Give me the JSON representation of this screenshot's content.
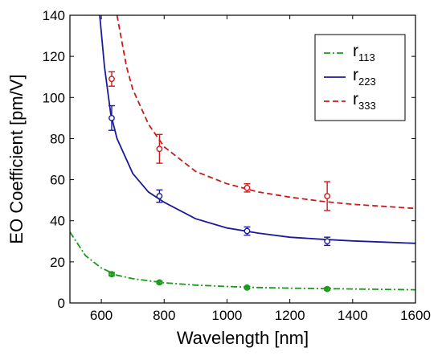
{
  "chart_data": {
    "type": "line",
    "xlabel": "Wavelength [nm]",
    "ylabel": "EO Coefficient [pm/V]",
    "xlim": [
      500,
      1600
    ],
    "ylim": [
      0,
      140
    ],
    "xticks": [
      600,
      800,
      1000,
      1200,
      1400,
      1600
    ],
    "yticks": [
      0,
      20,
      40,
      60,
      80,
      100,
      120,
      140
    ],
    "legend_position": "top-right",
    "series": [
      {
        "name": "r113",
        "name_base": "r",
        "name_sub": "113",
        "color": "#1a9a1a",
        "line_style": "dash-dot",
        "fit_curve": {
          "x": [
            500,
            550,
            600,
            650,
            700,
            800,
            900,
            1000,
            1100,
            1200,
            1300,
            1400,
            1500,
            1600
          ],
          "y": [
            34.5,
            23.0,
            17.0,
            13.5,
            11.8,
            9.8,
            8.7,
            8.0,
            7.5,
            7.2,
            7.0,
            6.8,
            6.6,
            6.4
          ]
        },
        "points": [
          {
            "x": 633,
            "y": 14,
            "err": 0.8
          },
          {
            "x": 785,
            "y": 10,
            "err": 0.6
          },
          {
            "x": 1064,
            "y": 7.5,
            "err": 0.6
          },
          {
            "x": 1319,
            "y": 6.8,
            "err": 0.6
          }
        ]
      },
      {
        "name": "r223",
        "name_base": "r",
        "name_sub": "223",
        "color": "#1a1a9a",
        "line_style": "solid",
        "fit_curve": {
          "x": [
            595,
            610,
            630,
            650,
            700,
            750,
            800,
            900,
            1000,
            1100,
            1200,
            1300,
            1400,
            1500,
            1600
          ],
          "y": [
            140,
            115,
            92,
            80,
            63,
            54,
            49,
            41,
            36.5,
            34,
            32,
            31,
            30.2,
            29.6,
            29
          ]
        },
        "points": [
          {
            "x": 633,
            "y": 90,
            "err": 6
          },
          {
            "x": 785,
            "y": 52,
            "err": 3
          },
          {
            "x": 1064,
            "y": 35,
            "err": 2
          },
          {
            "x": 1319,
            "y": 30,
            "err": 2
          }
        ]
      },
      {
        "name": "r333",
        "name_base": "r",
        "name_sub": "333",
        "color": "#cc1a1a",
        "line_style": "dashed",
        "fit_curve": {
          "x": [
            650,
            680,
            700,
            750,
            800,
            900,
            1000,
            1100,
            1200,
            1300,
            1400,
            1500,
            1600
          ],
          "y": [
            140,
            115,
            104,
            87,
            76,
            64,
            58,
            54,
            51.5,
            49.5,
            48,
            47,
            46
          ]
        },
        "points": [
          {
            "x": 633,
            "y": 109,
            "err": 3.5
          },
          {
            "x": 785,
            "y": 75,
            "err": 7
          },
          {
            "x": 1064,
            "y": 56,
            "err": 2
          },
          {
            "x": 1319,
            "y": 52,
            "err": 7
          }
        ]
      }
    ]
  }
}
